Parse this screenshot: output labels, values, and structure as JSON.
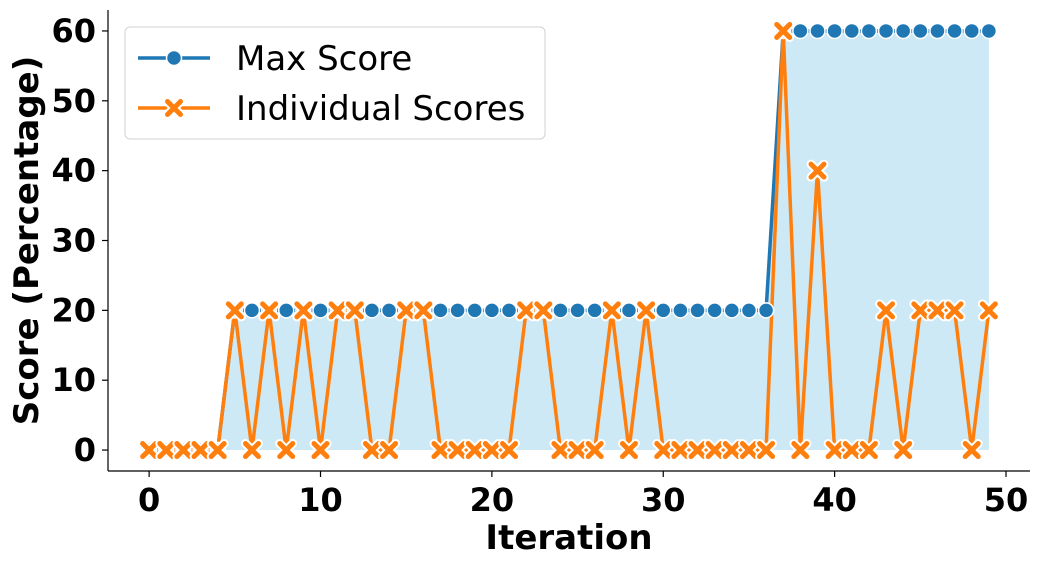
{
  "chart_data": {
    "type": "line",
    "xlabel": "Iteration",
    "ylabel": "Score (Percentage)",
    "xlim": [
      -2.4,
      51.4
    ],
    "ylim": [
      -3,
      63
    ],
    "xticks": [
      "0",
      "10",
      "20",
      "30",
      "40",
      "50"
    ],
    "yticks": [
      "0",
      "10",
      "20",
      "30",
      "40",
      "50",
      "60"
    ],
    "grid": false,
    "legend_position": "top-left",
    "x": [
      0,
      1,
      2,
      3,
      4,
      5,
      6,
      7,
      8,
      9,
      10,
      11,
      12,
      13,
      14,
      15,
      16,
      17,
      18,
      19,
      20,
      21,
      22,
      23,
      24,
      25,
      26,
      27,
      28,
      29,
      30,
      31,
      32,
      33,
      34,
      35,
      36,
      37,
      38,
      39,
      40,
      41,
      42,
      43,
      44,
      45,
      46,
      47,
      48,
      49
    ],
    "series": [
      {
        "name": "Max Score",
        "color": "#1f77b4",
        "marker": "circle",
        "fill_under": "#cde9f5",
        "values": [
          0,
          0,
          0,
          0,
          0,
          20,
          20,
          20,
          20,
          20,
          20,
          20,
          20,
          20,
          20,
          20,
          20,
          20,
          20,
          20,
          20,
          20,
          20,
          20,
          20,
          20,
          20,
          20,
          20,
          20,
          20,
          20,
          20,
          20,
          20,
          20,
          20,
          60,
          60,
          60,
          60,
          60,
          60,
          60,
          60,
          60,
          60,
          60,
          60,
          60
        ]
      },
      {
        "name": "Individual Scores",
        "color": "#ff7f0e",
        "marker": "x",
        "values": [
          0,
          0,
          0,
          0,
          0,
          20,
          0,
          20,
          0,
          20,
          0,
          20,
          20,
          0,
          0,
          20,
          20,
          0,
          0,
          0,
          0,
          0,
          20,
          20,
          0,
          0,
          0,
          20,
          0,
          20,
          0,
          0,
          0,
          0,
          0,
          0,
          0,
          60,
          0,
          40,
          0,
          0,
          0,
          20,
          0,
          20,
          20,
          20,
          0,
          20
        ]
      }
    ]
  }
}
